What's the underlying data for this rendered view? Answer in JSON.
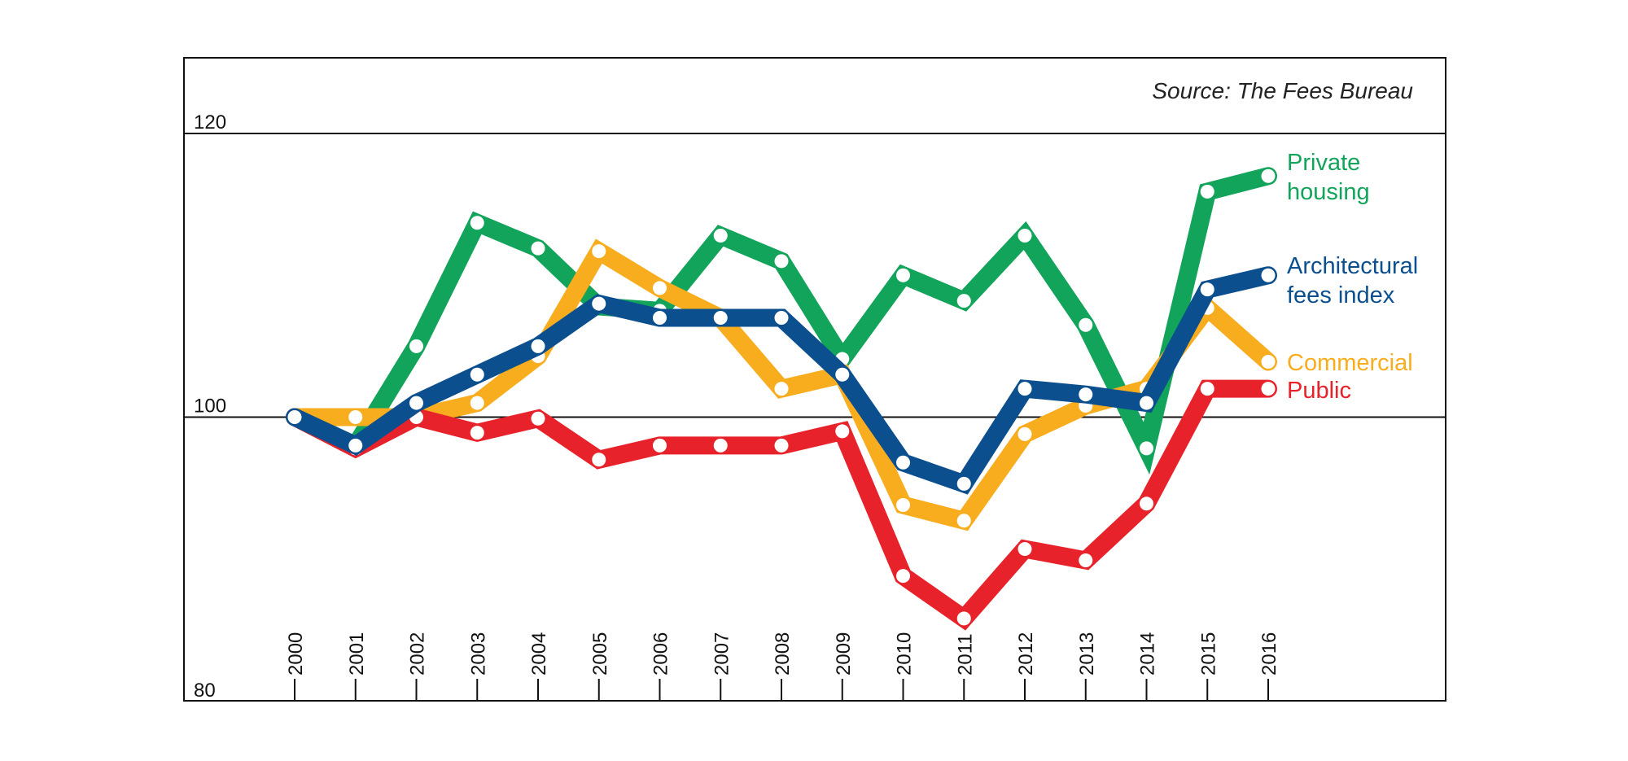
{
  "chart_data": {
    "type": "line",
    "source": "Source: The Fees Bureau",
    "ylim": [
      80,
      120
    ],
    "y_ticks": [
      "80",
      "100",
      "120"
    ],
    "y_tick_values": [
      80,
      100,
      120
    ],
    "gridlines": [
      100,
      120
    ],
    "categories": [
      "2000",
      "2001",
      "2002",
      "2003",
      "2004",
      "2005",
      "2006",
      "2007",
      "2008",
      "2009",
      "2010",
      "2011",
      "2012",
      "2013",
      "2014",
      "2015",
      "2016"
    ],
    "series": [
      {
        "name": "Private housing",
        "label_lines": [
          "Private",
          "housing"
        ],
        "color": "#12a45a",
        "values": [
          100,
          98,
          105,
          113.7,
          111.9,
          107.8,
          107.5,
          112.8,
          111,
          104.1,
          110,
          108.2,
          112.8,
          106.5,
          97.8,
          115.9,
          117
        ]
      },
      {
        "name": "Commercial",
        "label_lines": [
          "Commercial"
        ],
        "color": "#f8ad1f",
        "values": [
          100,
          100,
          100,
          101,
          104.3,
          111.7,
          109.1,
          107,
          102,
          103,
          93.8,
          92.7,
          98.8,
          100.8,
          102,
          107.7,
          103.9
        ]
      },
      {
        "name": "Public",
        "label_lines": [
          "Public"
        ],
        "color": "#e8222a",
        "values": [
          100,
          97.8,
          100,
          98.9,
          99.9,
          97,
          98,
          98,
          98,
          99,
          88.8,
          85.8,
          90.7,
          89.9,
          93.9,
          102,
          102
        ]
      },
      {
        "name": "Architectural fees index",
        "label_lines": [
          "Architectural",
          "fees index"
        ],
        "color": "#0b4f8e",
        "values": [
          100,
          98,
          101,
          103,
          105,
          108,
          107,
          107,
          107,
          103,
          96.8,
          95.3,
          102,
          101.6,
          101,
          109,
          110
        ]
      }
    ]
  }
}
